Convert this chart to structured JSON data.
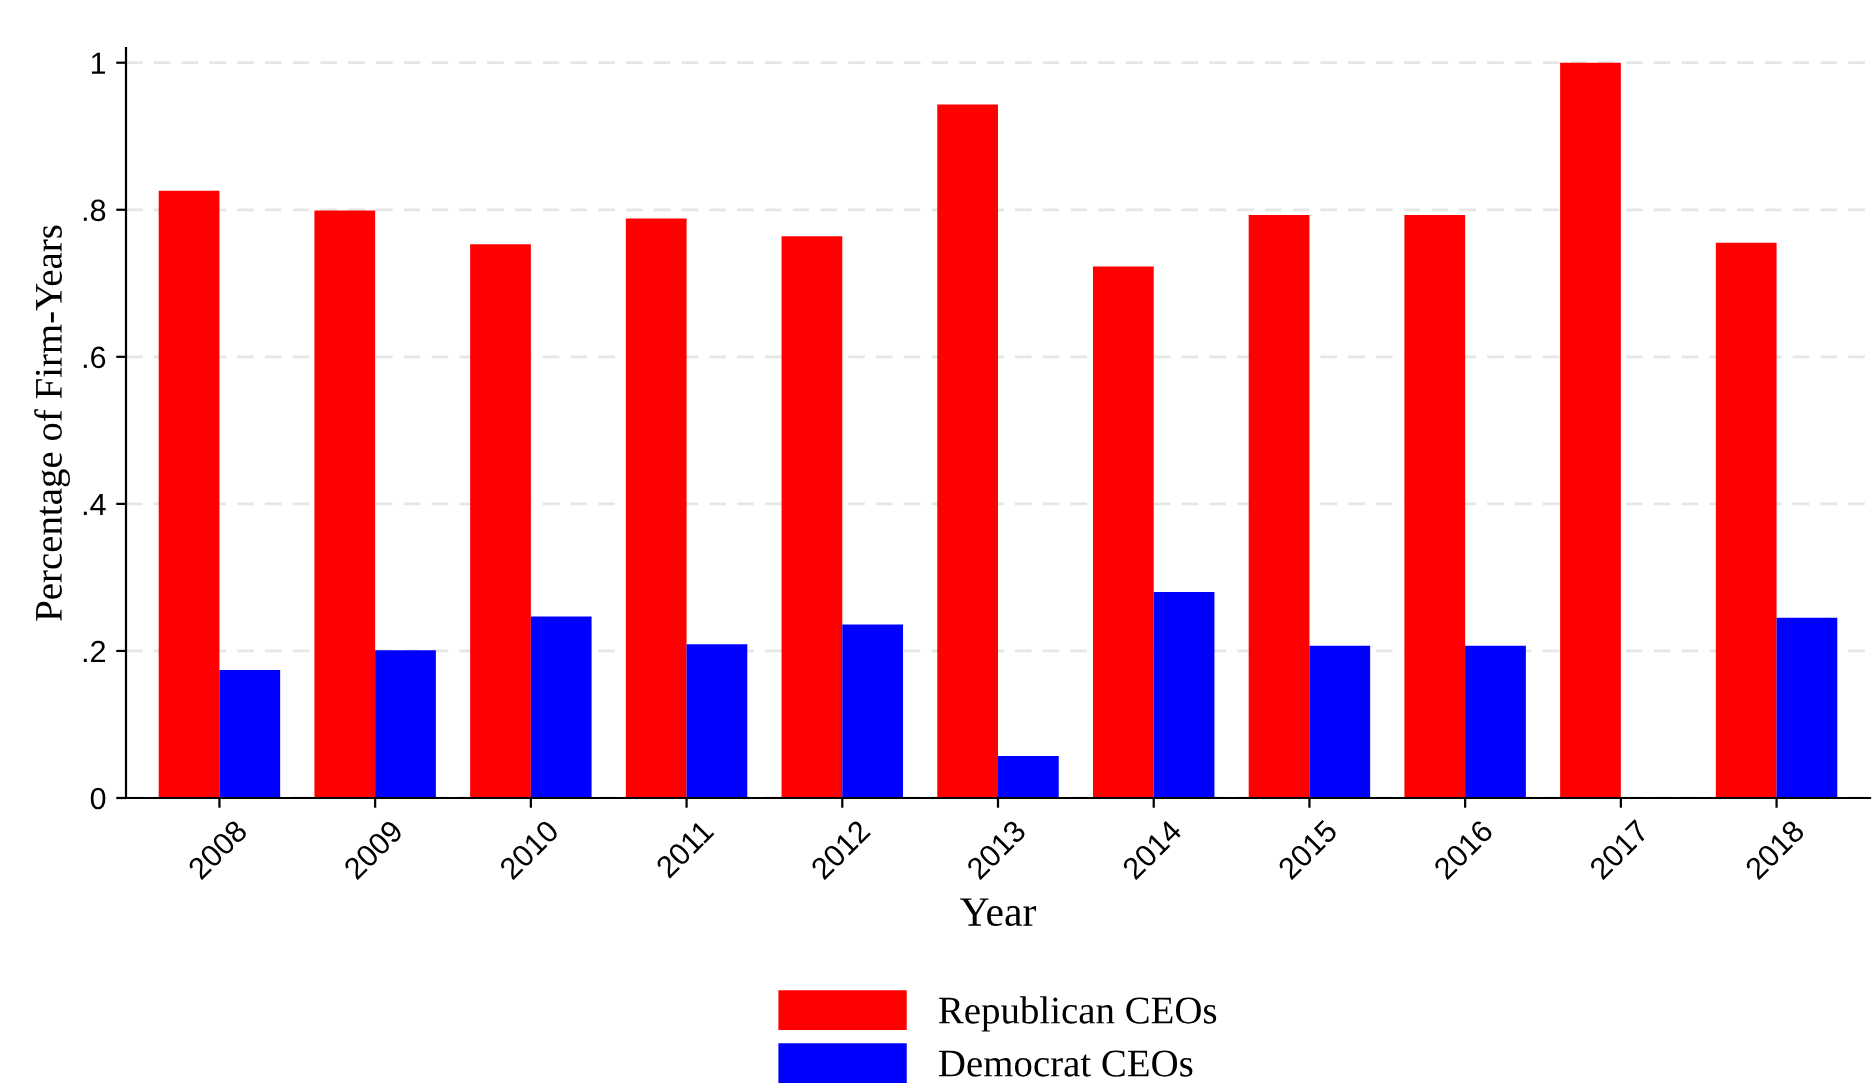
{
  "chart_data": {
    "type": "bar",
    "xlabel": "Year",
    "ylabel": "Percentage of Firm-Years",
    "categories": [
      "2008",
      "2009",
      "2010",
      "2011",
      "2012",
      "2013",
      "2014",
      "2015",
      "2016",
      "2017",
      "2018"
    ],
    "series": [
      {
        "name": "Republican CEOs",
        "color": "#ff0000",
        "values": [
          0.826,
          0.799,
          0.753,
          0.788,
          0.764,
          0.943,
          0.723,
          0.793,
          0.793,
          1.0,
          0.755
        ]
      },
      {
        "name": "Democrat CEOs",
        "color": "#0000ff",
        "values": [
          0.174,
          0.201,
          0.247,
          0.209,
          0.236,
          0.057,
          0.28,
          0.207,
          0.207,
          0,
          0.245
        ]
      }
    ],
    "ylim": [
      0,
      1.02
    ],
    "yticks": [
      0,
      {
        "value": 0.2,
        "label": ".2"
      },
      {
        "value": 0.4,
        "label": ".4"
      },
      {
        "value": 0.6,
        "label": ".6"
      },
      {
        "value": 0.8,
        "label": ".8"
      },
      1
    ],
    "grid": "y",
    "legend": "bottom"
  }
}
